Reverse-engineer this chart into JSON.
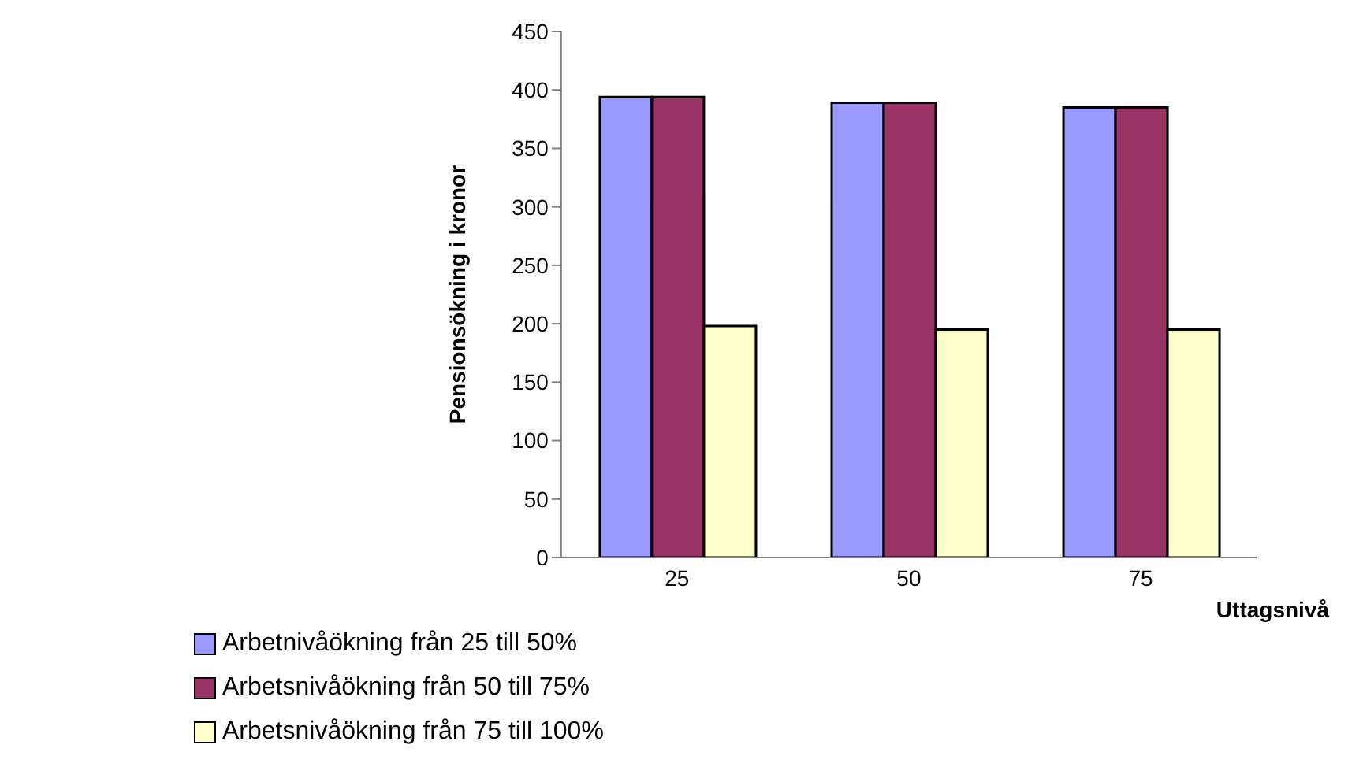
{
  "chart_data": {
    "type": "bar",
    "categories": [
      "25",
      "50",
      "75"
    ],
    "xlabel": "Uttagsnivå",
    "ylabel": "Pensionsökning i kronor",
    "series": [
      {
        "name": "Arbetnivåökning från 25 till 50%",
        "color": "#9999ff",
        "values": [
          394,
          389,
          385
        ]
      },
      {
        "name": "Arbetsnivåökning från 50 till 75%",
        "color": "#993366",
        "values": [
          394,
          389,
          385
        ]
      },
      {
        "name": "Arbetsnivåökning från 75 till 100%",
        "color": "#ffffcc",
        "values": [
          198,
          195,
          195
        ]
      }
    ],
    "ylim": [
      0,
      450
    ],
    "yticks": [
      0,
      50,
      100,
      150,
      200,
      250,
      300,
      350,
      400,
      450
    ],
    "grid": false,
    "legend": "bottom left"
  }
}
